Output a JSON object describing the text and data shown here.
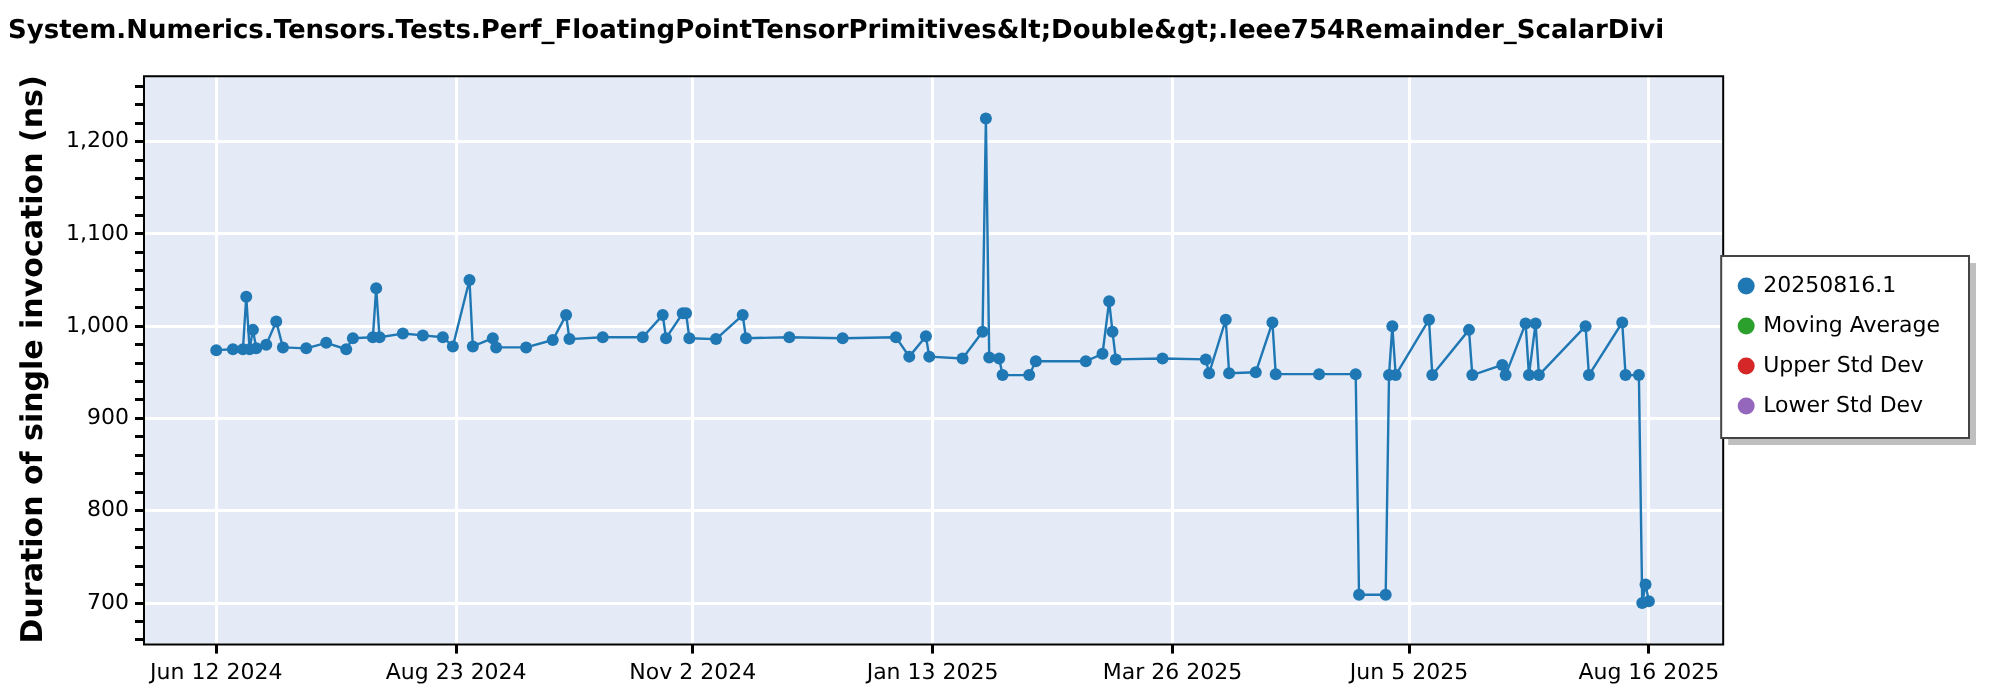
{
  "chart_data": {
    "type": "line",
    "title": "System.Numerics.Tensors.Tests.Perf_FloatingPointTensorPrimitives&lt;Double&gt;.Ieee754Remainder_ScalarDivi",
    "ylabel": "Duration of single invocation (ns)",
    "x": [
      "2024-06-12",
      "2024-06-17",
      "2024-06-20",
      "2024-06-21",
      "2024-06-22",
      "2024-06-23",
      "2024-06-24",
      "2024-06-27",
      "2024-06-30",
      "2024-07-02",
      "2024-07-09",
      "2024-07-15",
      "2024-07-21",
      "2024-07-23",
      "2024-07-29",
      "2024-07-30",
      "2024-07-31",
      "2024-08-07",
      "2024-08-13",
      "2024-08-19",
      "2024-08-22",
      "2024-08-27",
      "2024-08-28",
      "2024-09-03",
      "2024-09-04",
      "2024-09-13",
      "2024-09-21",
      "2024-09-25",
      "2024-09-26",
      "2024-10-06",
      "2024-10-18",
      "2024-10-24",
      "2024-10-25",
      "2024-10-30",
      "2024-10-31",
      "2024-11-01",
      "2024-11-09",
      "2024-11-17",
      "2024-11-18",
      "2024-12-01",
      "2024-12-17",
      "2025-01-02",
      "2025-01-06",
      "2025-01-11",
      "2025-01-12",
      "2025-01-22",
      "2025-01-28",
      "2025-01-29",
      "2025-01-30",
      "2025-02-02",
      "2025-02-03",
      "2025-02-11",
      "2025-02-13",
      "2025-02-28",
      "2025-03-05",
      "2025-03-07",
      "2025-03-08",
      "2025-03-09",
      "2025-03-23",
      "2025-04-05",
      "2025-04-06",
      "2025-04-11",
      "2025-04-12",
      "2025-04-20",
      "2025-04-25",
      "2025-04-26",
      "2025-05-09",
      "2025-05-20",
      "2025-05-21",
      "2025-05-29",
      "2025-05-30",
      "2025-05-31",
      "2025-06-01",
      "2025-06-11",
      "2025-06-12",
      "2025-06-23",
      "2025-06-24",
      "2025-07-03",
      "2025-07-04",
      "2025-07-10",
      "2025-07-11",
      "2025-07-13",
      "2025-07-14",
      "2025-07-28",
      "2025-07-29",
      "2025-08-08",
      "2025-08-09",
      "2025-08-13",
      "2025-08-14",
      "2025-08-15",
      "2025-08-16"
    ],
    "series": [
      {
        "name": "20250816.1",
        "color": "#1f77b4",
        "values": [
          974,
          975,
          975,
          1032,
          975,
          996,
          976,
          980,
          1005,
          977,
          976,
          982,
          975,
          987,
          988,
          1041,
          988,
          992,
          990,
          988,
          978,
          1050,
          978,
          987,
          977,
          977,
          985,
          1012,
          986,
          988,
          988,
          1012,
          987,
          1014,
          1014,
          987,
          986,
          1012,
          987,
          988,
          987,
          988,
          967,
          989,
          967,
          965,
          994,
          1225,
          966,
          965,
          947,
          947,
          962,
          962,
          970,
          1027,
          994,
          964,
          965,
          964,
          949,
          1007,
          949,
          950,
          1004,
          948,
          948,
          948,
          709,
          709,
          947,
          1000,
          947,
          1007,
          947,
          996,
          947,
          958,
          947,
          1003,
          947,
          1003,
          947,
          1000,
          947,
          1004,
          947,
          947,
          700,
          720,
          702
        ]
      },
      {
        "name": "Moving Average",
        "color": "#2ca02c",
        "values": [
          null,
          null,
          null,
          null,
          null,
          null,
          null,
          null,
          null,
          null,
          null,
          null,
          null,
          null,
          null,
          null,
          null,
          null,
          null,
          null,
          null,
          null,
          null,
          null,
          null,
          null,
          null,
          null,
          null,
          null,
          null,
          null,
          null,
          null,
          null,
          null,
          null,
          null,
          null,
          null,
          null,
          null,
          null,
          null,
          null,
          null,
          null,
          null,
          null,
          null,
          null,
          null,
          null,
          null,
          null,
          null,
          null,
          null,
          null,
          null,
          null,
          null,
          null,
          null,
          null,
          null,
          null,
          null,
          null,
          null,
          null,
          null,
          null,
          null,
          null,
          null,
          null,
          null,
          null,
          null,
          null,
          null,
          null,
          null,
          null,
          null,
          null,
          null,
          null,
          null,
          null
        ]
      },
      {
        "name": "Upper Std Dev",
        "color": "#d62728",
        "values": [
          null,
          null,
          null,
          null,
          null,
          null,
          null,
          null,
          null,
          null,
          null,
          null,
          null,
          null,
          null,
          null,
          null,
          null,
          null,
          null,
          null,
          null,
          null,
          null,
          null,
          null,
          null,
          null,
          null,
          null,
          null,
          null,
          null,
          null,
          null,
          null,
          null,
          null,
          null,
          null,
          null,
          null,
          null,
          null,
          null,
          null,
          null,
          null,
          null,
          null,
          null,
          null,
          null,
          null,
          null,
          null,
          null,
          null,
          null,
          null,
          null,
          null,
          null,
          null,
          null,
          null,
          null,
          null,
          null,
          null,
          null,
          null,
          null,
          null,
          null,
          null,
          null,
          null,
          null,
          null,
          null,
          null,
          null,
          null,
          null,
          null,
          null,
          null,
          null,
          null,
          null
        ]
      },
      {
        "name": "Lower Std Dev",
        "color": "#9467bd",
        "values": [
          null,
          null,
          null,
          null,
          null,
          null,
          null,
          null,
          null,
          null,
          null,
          null,
          null,
          null,
          null,
          null,
          null,
          null,
          null,
          null,
          null,
          null,
          null,
          null,
          null,
          null,
          null,
          null,
          null,
          null,
          null,
          null,
          null,
          null,
          null,
          null,
          null,
          null,
          null,
          null,
          null,
          null,
          null,
          null,
          null,
          null,
          null,
          null,
          null,
          null,
          null,
          null,
          null,
          null,
          null,
          null,
          null,
          null,
          null,
          null,
          null,
          null,
          null,
          null,
          null,
          null,
          null,
          null,
          null,
          null,
          null,
          null,
          null,
          null,
          null,
          null,
          null,
          null,
          null,
          null,
          null,
          null,
          null,
          null,
          null,
          null,
          null,
          null,
          null,
          null,
          null
        ]
      }
    ],
    "xlim": [
      "2024-05-21",
      "2025-09-07"
    ],
    "xticks": [
      {
        "value": "2024-06-12",
        "label": "Jun 12 2024"
      },
      {
        "value": "2024-08-23",
        "label": "Aug 23 2024"
      },
      {
        "value": "2024-11-02",
        "label": "Nov 2 2024"
      },
      {
        "value": "2025-01-13",
        "label": "Jan 13 2025"
      },
      {
        "value": "2025-03-26",
        "label": "Mar 26 2025"
      },
      {
        "value": "2025-06-05",
        "label": "Jun 5 2025"
      },
      {
        "value": "2025-08-16",
        "label": "Aug 16 2025"
      }
    ],
    "ylim": [
      656,
      1272
    ],
    "yticks": [
      {
        "value": 660,
        "label": null
      },
      {
        "value": 680,
        "label": null
      },
      700,
      {
        "value": 720,
        "label": null
      },
      {
        "value": 740,
        "label": null
      },
      {
        "value": 760,
        "label": null
      },
      {
        "value": 780,
        "label": null
      },
      800,
      {
        "value": 820,
        "label": null
      },
      {
        "value": 840,
        "label": null
      },
      {
        "value": 860,
        "label": null
      },
      {
        "value": 880,
        "label": null
      },
      900,
      {
        "value": 920,
        "label": null
      },
      {
        "value": 940,
        "label": null
      },
      {
        "value": 960,
        "label": null
      },
      {
        "value": 980,
        "label": null
      },
      {
        "value": 1000,
        "label": "1,000"
      },
      {
        "value": 1020,
        "label": null
      },
      {
        "value": 1040,
        "label": null
      },
      {
        "value": 1060,
        "label": null
      },
      {
        "value": 1080,
        "label": null
      },
      {
        "value": 1100,
        "label": "1,100"
      },
      {
        "value": 1120,
        "label": null
      },
      {
        "value": 1140,
        "label": null
      },
      {
        "value": 1160,
        "label": null
      },
      {
        "value": 1180,
        "label": null
      },
      {
        "value": 1200,
        "label": "1,200"
      },
      {
        "value": 1220,
        "label": null
      },
      {
        "value": 1240,
        "label": null
      },
      {
        "value": 1260,
        "label": null
      }
    ],
    "grid": true,
    "legend": "right",
    "marker": "circle",
    "line_style": "solid"
  }
}
